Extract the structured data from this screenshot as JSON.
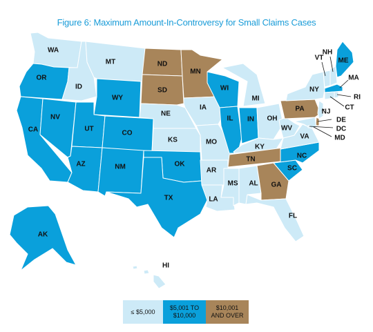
{
  "title": "Figure 6: Maximum Amount-In-Controversy for Small Claims Cases",
  "colors": {
    "low": "#cdeaf7",
    "mid": "#0aa0db",
    "high": "#a8855a",
    "border": "#ffffff",
    "title": "#1a9cd8"
  },
  "legend": {
    "low": "≤ $5,000",
    "mid_line1": "$5,001 TO",
    "mid_line2": "$10,000",
    "high_line1": "$10,001",
    "high_line2": "AND OVER"
  },
  "categories": {
    "low": "≤ $5,000",
    "mid": "$5,001 TO $10,000",
    "high": "$10,001 AND OVER"
  },
  "states": {
    "WA": "low",
    "OR": "mid",
    "CA": "mid",
    "NV": "mid",
    "ID": "low",
    "MT": "low",
    "WY": "mid",
    "UT": "mid",
    "CO": "mid",
    "AZ": "mid",
    "NM": "mid",
    "ND": "high",
    "SD": "high",
    "NE": "low",
    "KS": "low",
    "OK": "mid",
    "TX": "mid",
    "MN": "high",
    "IA": "low",
    "MO": "low",
    "AR": "low",
    "LA": "low",
    "WI": "mid",
    "IL": "mid",
    "MI": "low",
    "IN": "mid",
    "OH": "low",
    "KY": "low",
    "TN": "high",
    "MS": "low",
    "AL": "low",
    "GA": "high",
    "FL": "low",
    "SC": "mid",
    "NC": "mid",
    "VA": "low",
    "WV": "low",
    "PA": "high",
    "NY": "low",
    "VT": "low",
    "NH": "low",
    "ME": "mid",
    "MA": "mid",
    "RI": "low",
    "CT": "low",
    "NJ": "low",
    "DE": "high",
    "MD": "low",
    "DC": "low",
    "AK": "mid",
    "HI": "low"
  },
  "labels": {
    "WA": "WA",
    "OR": "OR",
    "CA": "CA",
    "NV": "NV",
    "ID": "ID",
    "MT": "MT",
    "WY": "WY",
    "UT": "UT",
    "CO": "CO",
    "AZ": "AZ",
    "NM": "NM",
    "ND": "ND",
    "SD": "SD",
    "NE": "NE",
    "KS": "KS",
    "OK": "OK",
    "TX": "TX",
    "MN": "MN",
    "IA": "IA",
    "MO": "MO",
    "AR": "AR",
    "LA": "LA",
    "WI": "WI",
    "IL": "IL",
    "MI": "MI",
    "IN": "IN",
    "OH": "OH",
    "KY": "KY",
    "TN": "TN",
    "MS": "MS",
    "AL": "AL",
    "GA": "GA",
    "FL": "FL",
    "SC": "SC",
    "NC": "NC",
    "VA": "VA",
    "WV": "WV",
    "PA": "PA",
    "NY": "NY",
    "VT": "VT",
    "NH": "NH",
    "ME": "ME",
    "MA": "MA",
    "RI": "RI",
    "CT": "CT",
    "NJ": "NJ",
    "DE": "DE",
    "MD": "MD",
    "DC": "DC",
    "AK": "AK",
    "HI": "HI"
  }
}
